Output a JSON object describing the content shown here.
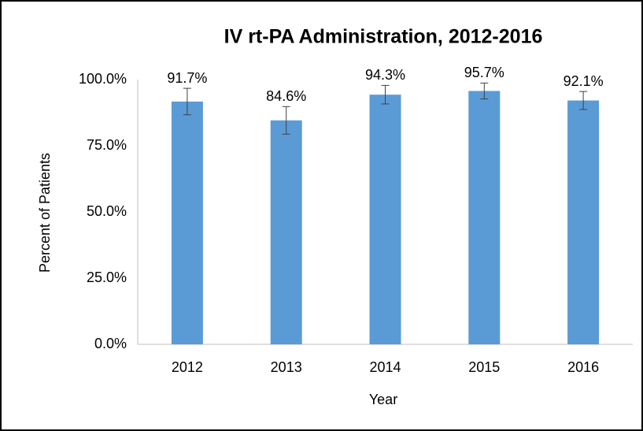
{
  "chart_data": {
    "type": "bar",
    "title": "IV rt-PA Administration, 2012-2016",
    "xlabel": "Year",
    "ylabel": "Percent of Patients",
    "categories": [
      "2012",
      "2013",
      "2014",
      "2015",
      "2016"
    ],
    "values": [
      91.7,
      84.6,
      94.3,
      95.7,
      92.1
    ],
    "value_labels": [
      "91.7%",
      "84.6%",
      "94.3%",
      "95.7%",
      "92.1%"
    ],
    "errors": [
      5.0,
      5.2,
      3.5,
      3.0,
      3.4
    ],
    "color": "#5b9bd5",
    "ylim": [
      0,
      100
    ],
    "yticks": [
      {
        "value": 0,
        "label": "0.0%"
      },
      {
        "value": 25,
        "label": "25.0%"
      },
      {
        "value": 50,
        "label": "50.0%"
      },
      {
        "value": 75,
        "label": "75.0%"
      },
      {
        "value": 100,
        "label": "100.0%"
      }
    ],
    "grid": false
  }
}
